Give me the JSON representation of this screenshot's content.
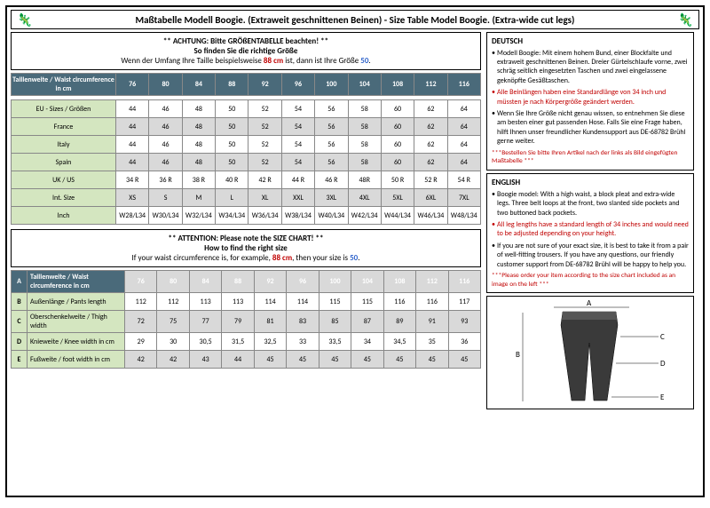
{
  "title": "Maßtabelle Modell Boogie. (Extraweit geschnittenen Beinen) - Size Table Model Boogie. (Extra-wide cut legs)",
  "notice1": {
    "l1": "** ACHTUNG: Bitte GRÖßENTABELLE beachten! **",
    "l2": "So finden Sie die richtige Größe",
    "l3a": "Wenn der Umfang Ihre Taille beispielsweise ",
    "l3b": "88 cm",
    "l3c": " ist, dann ist Ihre Größe ",
    "l3d": "50",
    "l3e": "."
  },
  "waistHdr": "Taillenweite / Waist circumference in cm",
  "waist": [
    "76",
    "80",
    "84",
    "88",
    "92",
    "96",
    "100",
    "104",
    "108",
    "112",
    "116"
  ],
  "rows2": [
    {
      "l": "EU - Sizes / Größen",
      "v": [
        "44",
        "46",
        "48",
        "50",
        "52",
        "54",
        "56",
        "58",
        "60",
        "62",
        "64"
      ]
    },
    {
      "l": "France",
      "v": [
        "44",
        "46",
        "48",
        "50",
        "52",
        "54",
        "56",
        "58",
        "60",
        "62",
        "64"
      ]
    },
    {
      "l": "Italy",
      "v": [
        "44",
        "46",
        "48",
        "50",
        "52",
        "54",
        "56",
        "58",
        "60",
        "62",
        "64"
      ]
    },
    {
      "l": "Spain",
      "v": [
        "44",
        "46",
        "48",
        "50",
        "52",
        "54",
        "56",
        "58",
        "60",
        "62",
        "64"
      ]
    },
    {
      "l": "UK / US",
      "v": [
        "34 R",
        "36 R",
        "38 R",
        "40 R",
        "42 R",
        "44 R",
        "46 R",
        "48R",
        "50 R",
        "52 R",
        "54 R"
      ]
    },
    {
      "l": "Int. Size",
      "v": [
        "XS",
        "S",
        "M",
        "L",
        "XL",
        "XXL",
        "3XL",
        "4XL",
        "5XL",
        "6XL",
        "7XL"
      ]
    },
    {
      "l": "Inch",
      "v": [
        "W28/L34",
        "W30/L34",
        "W32/L34",
        "W34/L34",
        "W36/L34",
        "W38/L34",
        "W40/L34",
        "W42/L34",
        "W44/L34",
        "W46/L34",
        "W48/L34"
      ]
    }
  ],
  "notice2": {
    "l1": "** ATTENTION: Please note the SIZE CHART! **",
    "l2": "How to find the right size",
    "l3a": "If your waist circumference is, for example, ",
    "l3b": "88 cm",
    "l3c": ", then your size is ",
    "l3d": "50",
    "l3e": "."
  },
  "rows3": [
    {
      "k": "A",
      "l": "Taillenweite / Waist circumference in cm",
      "v": [
        "76",
        "80",
        "84",
        "88",
        "92",
        "96",
        "100",
        "104",
        "108",
        "112",
        "116"
      ]
    },
    {
      "k": "B",
      "l": "Außenlänge / Pants length",
      "v": [
        "112",
        "112",
        "113",
        "113",
        "114",
        "114",
        "115",
        "115",
        "116",
        "116",
        "117"
      ]
    },
    {
      "k": "C",
      "l": "Oberschenkelweite / Thigh width",
      "v": [
        "72",
        "75",
        "77",
        "79",
        "81",
        "83",
        "85",
        "87",
        "89",
        "91",
        "93"
      ]
    },
    {
      "k": "D",
      "l": "Knieweite / Knee width in cm",
      "v": [
        "29",
        "30",
        "30,5",
        "31,5",
        "32,5",
        "33",
        "33,5",
        "34",
        "34,5",
        "35",
        "36"
      ]
    },
    {
      "k": "E",
      "l": "Fußweite / foot width in cm",
      "v": [
        "42",
        "42",
        "43",
        "44",
        "45",
        "45",
        "45",
        "45",
        "45",
        "45",
        "45"
      ]
    }
  ],
  "de": {
    "t": "DEUTSCH",
    "b1": "Modell Boogie: Mit einem hohem Bund, einer Blockfalte und extraweit geschnittenen Beinen. Dreier Gürtelschlaufe vorne, zwei schräg seitlich eingesetzten Taschen und zwei eingelassene geknöpfte Gesäßtaschen.",
    "b2": "Alle Beinlängen haben eine Standardlänge von 34 inch und müssten je nach Körpergröße geändert werden.",
    "b3": "Wenn Sie Ihre Größe nicht genau wissen, so entnehmen Sie diese am besten einer gut passenden Hose. Falls Sie eine Frage haben, hilft Ihnen unser freundlicher Kundensupport aus DE-68782 Brühl gerne weiter.",
    "b4": "***Bestellen Sie bitte Ihren Artikel nach der links als Bild eingefügten Maßtabelle ***"
  },
  "en": {
    "t": "ENGLISH",
    "b1": "Boogie model: With a high waist, a block pleat and extra-wide legs. Three belt loops at the front, two slanted side pockets and two buttoned back pockets.",
    "b2": "All leg lengths have a standard length of 34 inches and would need to be adjusted depending on your height.",
    "b3": "If you are not sure of your exact size, it is best to take it from a pair of well-fitting trousers. If you have any questions, our friendly customer support from DE-68782 Brühl will be happy to help you.",
    "b4": "***Please order your item according to the size chart included as an image on the left ***"
  },
  "diag": {
    "A": "A",
    "B": "B",
    "C": "C",
    "D": "D",
    "E": "E"
  },
  "colors": {
    "header": "#4a6a7a",
    "green": "#d4e6c0",
    "grey": "#d9d9d9",
    "red": "#c00000",
    "blue": "#3366cc"
  }
}
